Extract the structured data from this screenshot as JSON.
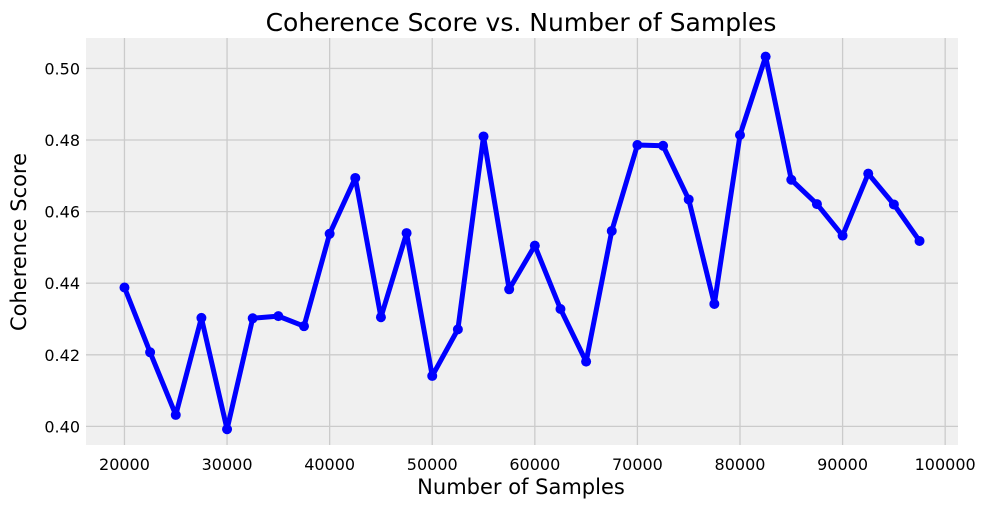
{
  "chart_data": {
    "type": "line",
    "title": "Coherence Score vs. Number of Samples",
    "xlabel": "Number of Samples",
    "ylabel": "Coherence Score",
    "xlim": [
      16250,
      101250
    ],
    "ylim": [
      0.3948,
      0.5085
    ],
    "xticks": [
      20000,
      30000,
      40000,
      50000,
      60000,
      70000,
      80000,
      90000,
      100000
    ],
    "yticks": [
      0.4,
      0.42,
      0.44,
      0.46,
      0.48,
      0.5
    ],
    "ytick_labels": [
      "0.40",
      "0.42",
      "0.44",
      "0.46",
      "0.48",
      "0.50"
    ],
    "grid": true,
    "colors": {
      "line": "#0000ff",
      "plot_background": "#f0f0f0",
      "grid": "#cbcbcb"
    },
    "series": [
      {
        "x": [
          20000,
          22500,
          25000,
          27500,
          30000,
          32500,
          35000,
          37500,
          40000,
          42500,
          45000,
          47500,
          50000,
          52500,
          55000,
          57500,
          60000,
          62500,
          65000,
          67500,
          70000,
          72500,
          75000,
          77500,
          80000,
          82500,
          85000,
          87500,
          90000,
          92500,
          95000,
          97500
        ],
        "y": [
          0.4388,
          0.4207,
          0.4032,
          0.4303,
          0.3992,
          0.4302,
          0.4308,
          0.428,
          0.4538,
          0.4694,
          0.4305,
          0.454,
          0.4141,
          0.4271,
          0.481,
          0.4383,
          0.4505,
          0.4328,
          0.4181,
          0.4546,
          0.4786,
          0.4784,
          0.4634,
          0.4342,
          0.4814,
          0.5033,
          0.4689,
          0.4621,
          0.4533,
          0.4706,
          0.462,
          0.4518
        ]
      }
    ]
  }
}
